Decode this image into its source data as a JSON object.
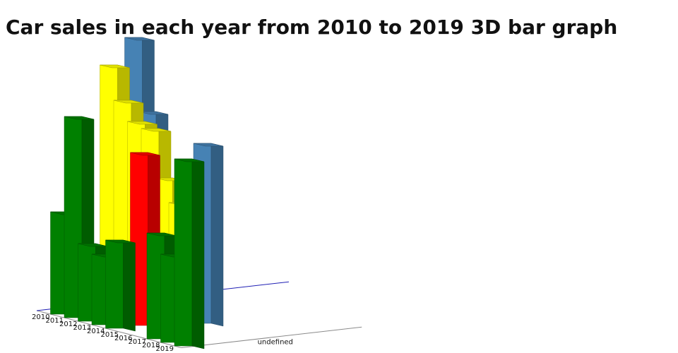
{
  "chart_data": {
    "type": "bar",
    "title": "Car sales in each year from 2010 to 2019 3D bar graph",
    "categories": [
      "undefined"
    ],
    "x": [
      "2010",
      "2011",
      "2012",
      "2013",
      "2014",
      "2015",
      "2016",
      "2017",
      "2018",
      "2019"
    ],
    "series": [
      {
        "values": [
          145,
          285,
          110,
          100,
          125,
          0,
          0,
          150,
          125,
          265
        ],
        "color": "#008000"
      },
      {
        "values": [
          95,
          0,
          70,
          65,
          245,
          0,
          0,
          0,
          0,
          0
        ],
        "color": "#ff0000"
      },
      {
        "values": [
          345,
          300,
          275,
          270,
          205,
          175,
          0,
          0,
          0,
          0
        ],
        "color": "#ffff00"
      },
      {
        "values": [
          380,
          280,
          75,
          125,
          125,
          255,
          0,
          0,
          0,
          0
        ],
        "color": "#4682b4"
      }
    ],
    "grid": false,
    "legend": "none"
  }
}
